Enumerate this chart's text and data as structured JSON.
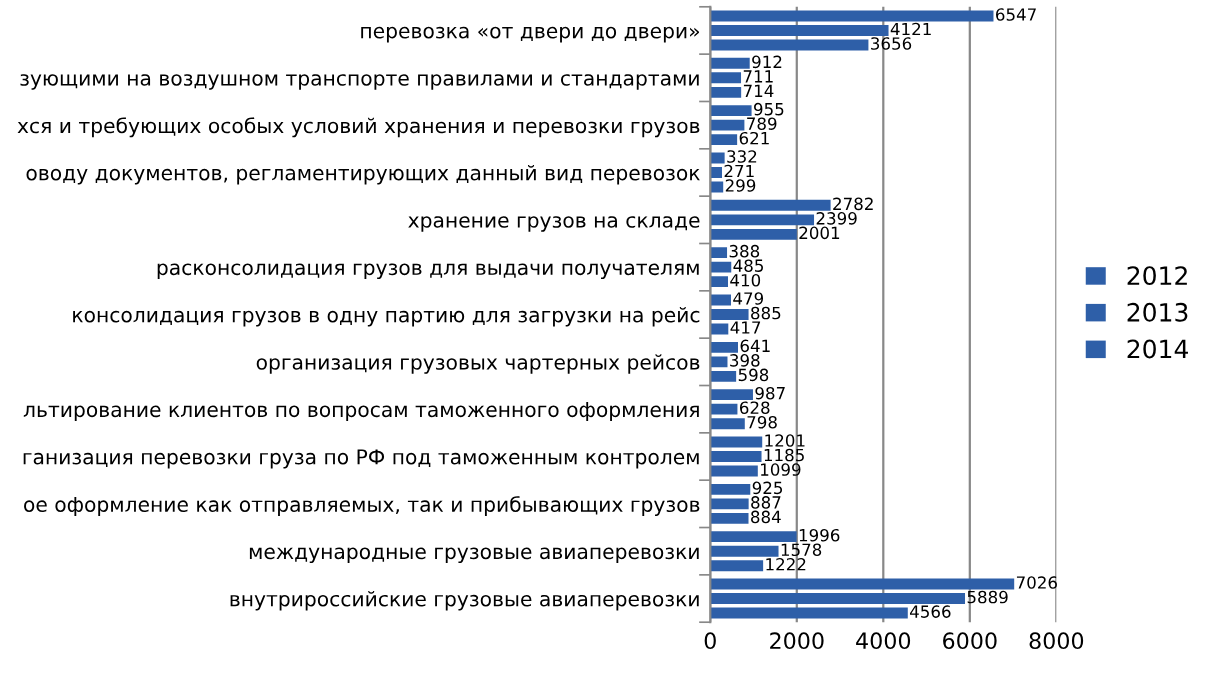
{
  "chart_data": {
    "type": "bar",
    "orientation": "horizontal",
    "categories": [
      "перевозка «от двери до двери»",
      "зующими на воздушном транспорте правилами и стандартами",
      "хся и требующих особых условий хранения и перевозки грузов",
      "оводу документов, регламентирующих данный вид перевозок",
      "хранение грузов на складе",
      "расконсолидация грузов для выдачи получателям",
      "консолидация грузов в одну партию для загрузки на рейс",
      "организация грузовых чартерных рейсов",
      "льтирование клиентов по вопросам таможенного оформления",
      "ганизация перевозки груза по РФ под таможенным контролем",
      "ое оформление как отправляемых, так и прибывающих грузов",
      "международные грузовые авиаперевозки",
      "внутрироссийские грузовые авиаперевозки"
    ],
    "series": [
      {
        "name": "2014",
        "color": "#2e5fa8",
        "values": [
          6547,
          912,
          955,
          332,
          2782,
          388,
          479,
          641,
          987,
          1201,
          925,
          1996,
          7026
        ]
      },
      {
        "name": "2013",
        "color": "#2e5fa8",
        "values": [
          4121,
          711,
          789,
          271,
          2399,
          485,
          885,
          398,
          628,
          1185,
          887,
          1578,
          5889
        ]
      },
      {
        "name": "2012",
        "color": "#2e5fa8",
        "values": [
          3656,
          714,
          621,
          299,
          2001,
          410,
          417,
          598,
          798,
          1099,
          884,
          1222,
          4566
        ]
      }
    ],
    "xlim": [
      0,
      8000
    ],
    "xticks": [
      0,
      2000,
      4000,
      6000,
      8000
    ],
    "grid": "x",
    "legend": "right",
    "data_labels": true
  }
}
